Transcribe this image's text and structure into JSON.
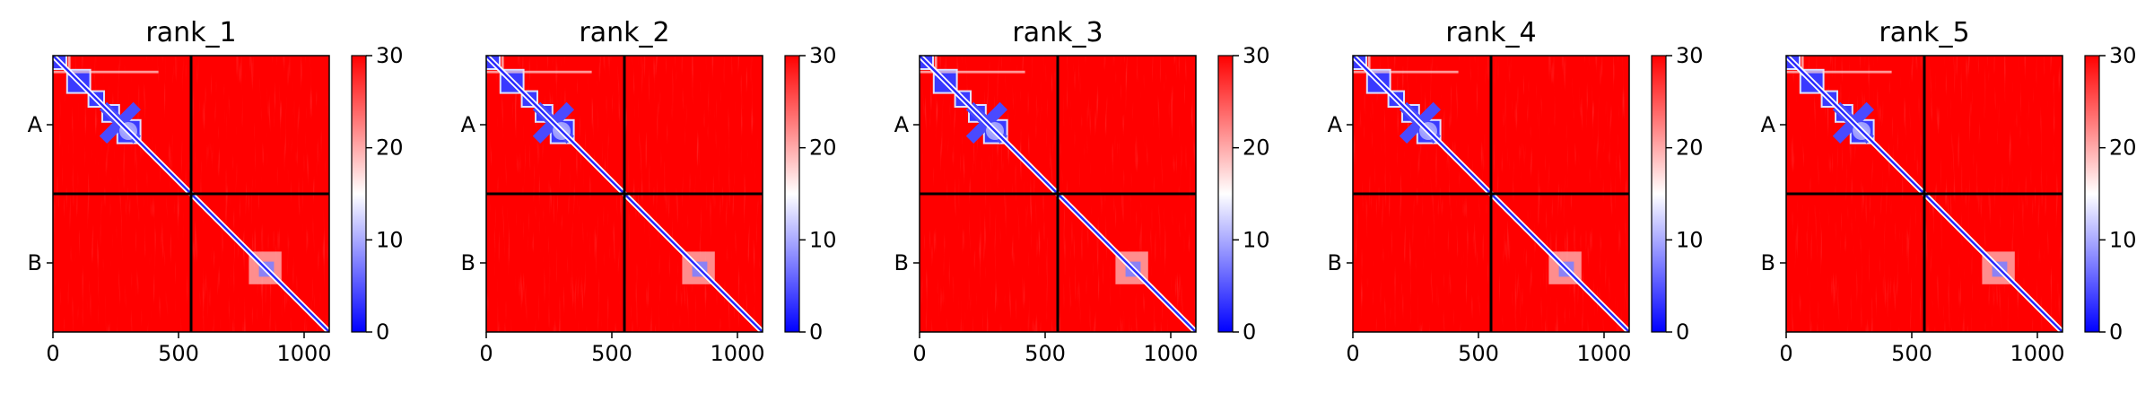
{
  "chart_data": [
    {
      "type": "heatmap",
      "title": "rank_1",
      "x_ticks": [
        0,
        500,
        1000
      ],
      "y_tick_labels": [
        "A",
        "B"
      ],
      "chain_break": 550,
      "total_length": 1100,
      "colorbar": {
        "min": 0,
        "max": 30,
        "ticks": [
          0,
          10,
          20,
          30
        ],
        "colors": [
          "#0000ff",
          "#ffffff",
          "#ff0000"
        ]
      }
    },
    {
      "type": "heatmap",
      "title": "rank_2",
      "x_ticks": [
        0,
        500,
        1000
      ],
      "y_tick_labels": [
        "A",
        "B"
      ],
      "chain_break": 550,
      "total_length": 1100,
      "colorbar": {
        "min": 0,
        "max": 30,
        "ticks": [
          0,
          10,
          20,
          30
        ],
        "colors": [
          "#0000ff",
          "#ffffff",
          "#ff0000"
        ]
      }
    },
    {
      "type": "heatmap",
      "title": "rank_3",
      "x_ticks": [
        0,
        500,
        1000
      ],
      "y_tick_labels": [
        "A",
        "B"
      ],
      "chain_break": 550,
      "total_length": 1100,
      "colorbar": {
        "min": 0,
        "max": 30,
        "ticks": [
          0,
          10,
          20,
          30
        ],
        "colors": [
          "#0000ff",
          "#ffffff",
          "#ff0000"
        ]
      }
    },
    {
      "type": "heatmap",
      "title": "rank_4",
      "x_ticks": [
        0,
        500,
        1000
      ],
      "y_tick_labels": [
        "A",
        "B"
      ],
      "chain_break": 550,
      "total_length": 1100,
      "colorbar": {
        "min": 0,
        "max": 30,
        "ticks": [
          0,
          10,
          20,
          30
        ],
        "colors": [
          "#0000ff",
          "#ffffff",
          "#ff0000"
        ]
      }
    },
    {
      "type": "heatmap",
      "title": "rank_5",
      "x_ticks": [
        0,
        500,
        1000
      ],
      "y_tick_labels": [
        "A",
        "B"
      ],
      "chain_break": 550,
      "total_length": 1100,
      "colorbar": {
        "min": 0,
        "max": 30,
        "ticks": [
          0,
          10,
          20,
          30
        ],
        "colors": [
          "#0000ff",
          "#ffffff",
          "#ff0000"
        ]
      }
    }
  ]
}
